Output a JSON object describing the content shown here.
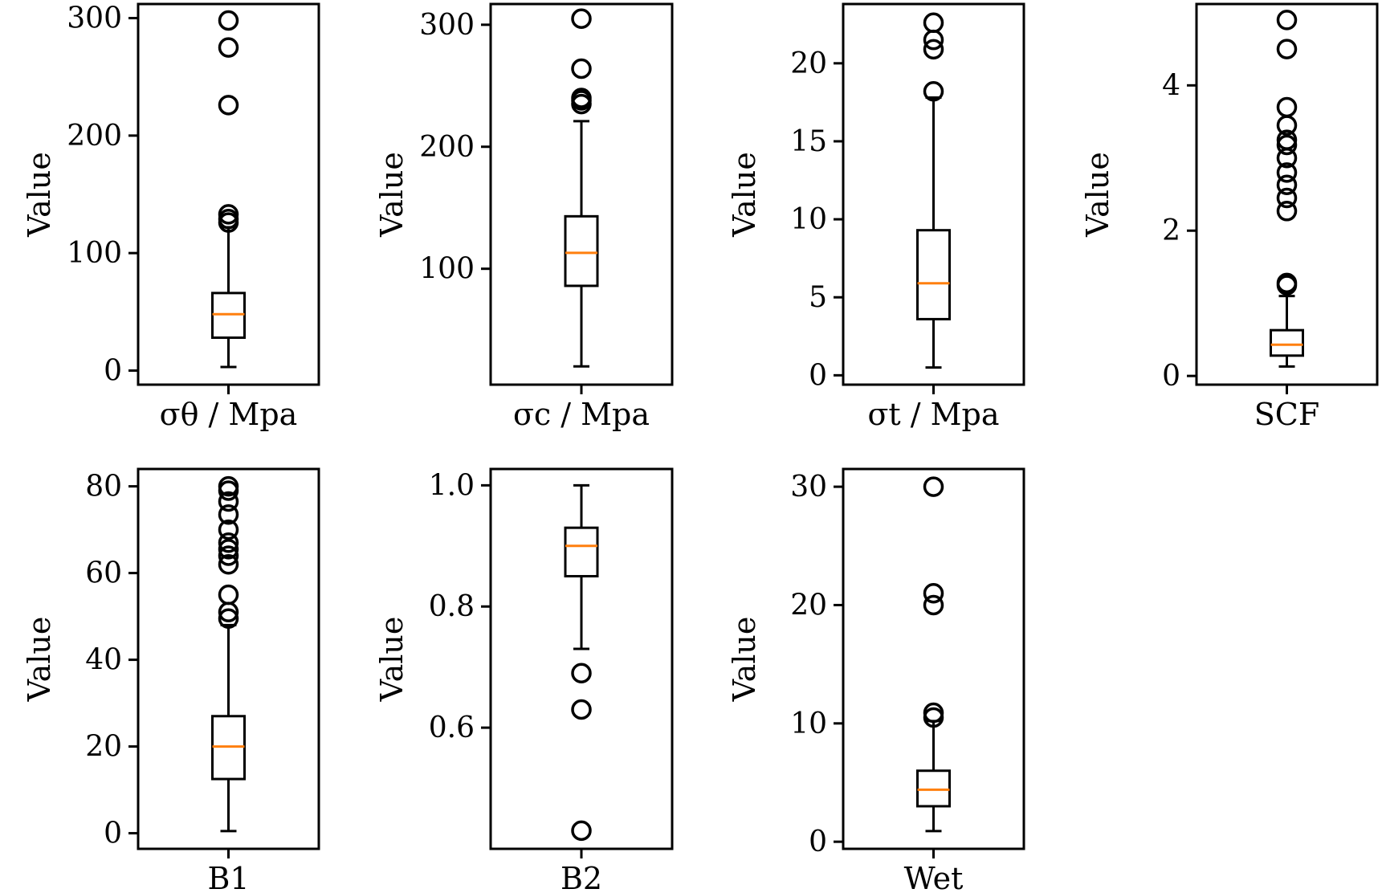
{
  "chart_data": [
    {
      "type": "box",
      "xlabel": "σθ / Mpa",
      "ylabel": "Value",
      "ylim": [
        -12,
        312
      ],
      "yticks": [
        0,
        100,
        200,
        300
      ],
      "box": {
        "whisker_low": 3,
        "q1": 28,
        "median": 48,
        "q3": 66,
        "whisker_high": 122
      },
      "outliers": [
        126,
        129,
        133,
        226,
        275,
        298
      ]
    },
    {
      "type": "box",
      "xlabel": "σc / Mpa",
      "ylabel": "Value",
      "ylim": [
        5,
        317
      ],
      "yticks": [
        100,
        200,
        300
      ],
      "box": {
        "whisker_low": 20,
        "q1": 86,
        "median": 113,
        "q3": 143,
        "whisker_high": 221
      },
      "outliers": [
        235,
        238,
        240,
        264,
        305
      ]
    },
    {
      "type": "box",
      "xlabel": "σt / Mpa",
      "ylabel": "Value",
      "ylim": [
        -0.6,
        23.8
      ],
      "yticks": [
        0,
        5,
        10,
        15,
        20
      ],
      "box": {
        "whisker_low": 0.5,
        "q1": 3.6,
        "median": 5.9,
        "q3": 9.3,
        "whisker_high": 17.8
      },
      "outliers": [
        18.2,
        20.9,
        21.5,
        22.6
      ]
    },
    {
      "type": "box",
      "xlabel": "SCF",
      "ylabel": "Value",
      "ylim": [
        -0.12,
        5.12
      ],
      "yticks": [
        0,
        2,
        4
      ],
      "box": {
        "whisker_low": 0.13,
        "q1": 0.28,
        "median": 0.43,
        "q3": 0.63,
        "whisker_high": 1.1
      },
      "outliers": [
        1.25,
        1.28,
        2.27,
        2.45,
        2.63,
        2.8,
        3.0,
        3.18,
        3.25,
        3.45,
        3.7,
        4.5,
        4.9
      ]
    },
    {
      "type": "box",
      "xlabel": "B1",
      "ylabel": "Value",
      "ylim": [
        -3.6,
        84
      ],
      "yticks": [
        0,
        20,
        40,
        60,
        80
      ],
      "box": {
        "whisker_low": 0.5,
        "q1": 12.5,
        "median": 20,
        "q3": 27,
        "whisker_high": 48
      },
      "outliers": [
        49.5,
        51,
        55,
        62,
        64,
        65.5,
        67,
        70,
        73.5,
        76.5,
        79,
        80
      ]
    },
    {
      "type": "box",
      "xlabel": "B2",
      "ylabel": "Value",
      "ylim": [
        0.4,
        1.027
      ],
      "yticks": [
        0.6,
        0.8,
        1.0
      ],
      "box": {
        "whisker_low": 0.73,
        "q1": 0.85,
        "median": 0.9,
        "q3": 0.93,
        "whisker_high": 1.0
      },
      "outliers": [
        0.43,
        0.63,
        0.69
      ]
    },
    {
      "type": "box",
      "xlabel": "Wet",
      "ylabel": "Value",
      "ylim": [
        -0.6,
        31.5
      ],
      "yticks": [
        0,
        10,
        20,
        30
      ],
      "box": {
        "whisker_low": 0.9,
        "q1": 3.0,
        "median": 4.4,
        "q3": 6.0,
        "whisker_high": 10.2
      },
      "outliers": [
        10.5,
        10.9,
        20,
        21,
        30
      ]
    }
  ]
}
